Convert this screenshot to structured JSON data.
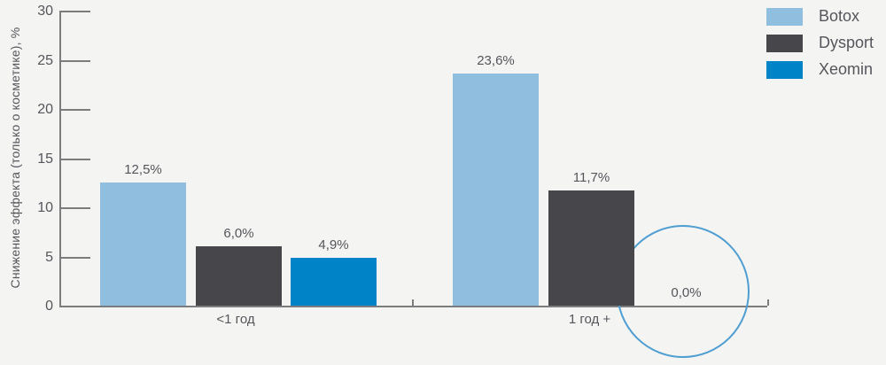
{
  "ylabel": "Снижение эффекта (только о косметике), %",
  "colors": {
    "background": "#F4F4F2",
    "axis": "#7B7C7E",
    "text": "#55565C",
    "annotation_circle": "#4E9ED2"
  },
  "chart_data": {
    "type": "bar",
    "categories": [
      "<1 год",
      "1 год +"
    ],
    "series": [
      {
        "name": "Botox",
        "color": "#90BEDE",
        "values": [
          12.5,
          23.6
        ],
        "value_labels": [
          "12,5%",
          "23,6%"
        ]
      },
      {
        "name": "Dysport",
        "color": "#47474B",
        "values": [
          6.0,
          11.7
        ],
        "value_labels": [
          "6,0%",
          "11,7%"
        ]
      },
      {
        "name": "Xeomin",
        "color": "#0083C7",
        "values": [
          4.9,
          0.0
        ],
        "value_labels": [
          "4,9%",
          "0,0%"
        ]
      }
    ],
    "ylim": [
      0,
      30
    ],
    "yticks": [
      0,
      5,
      10,
      15,
      20,
      25,
      30
    ],
    "grid": false,
    "legend_position": "top-right",
    "annotation": {
      "style": "circle",
      "text": "0,0%",
      "target_series": "Xeomin",
      "target_category": "1 год +"
    }
  }
}
